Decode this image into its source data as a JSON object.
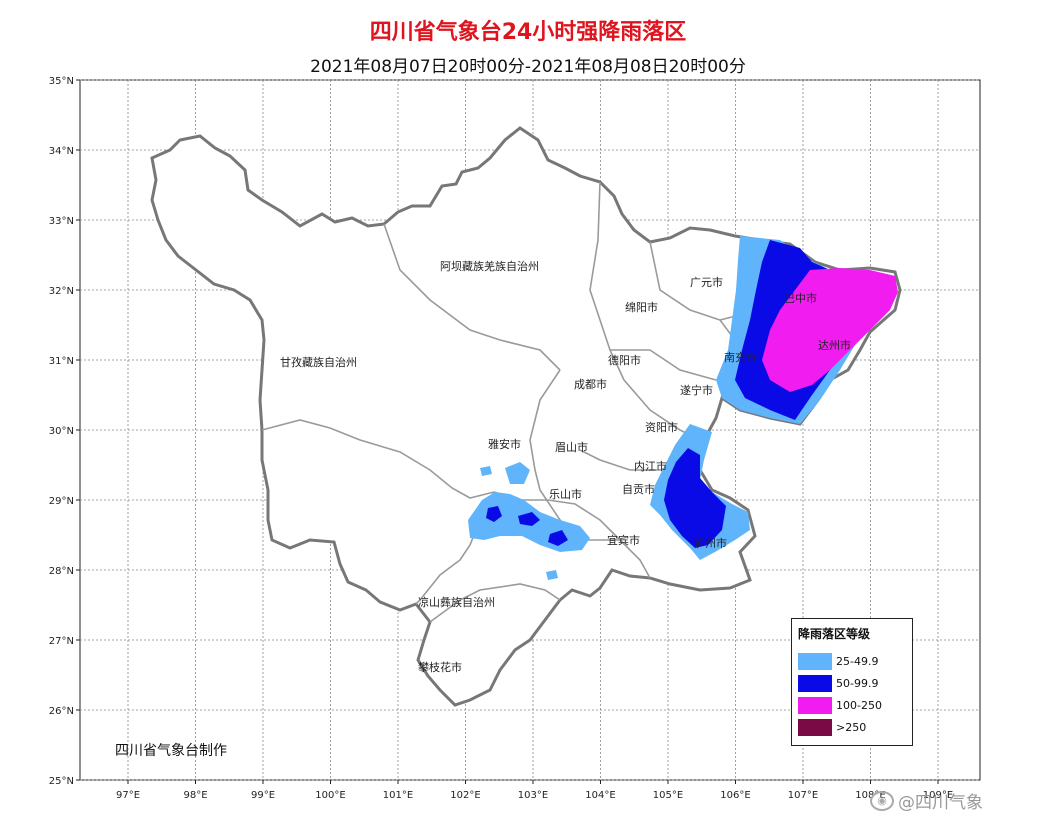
{
  "title": "四川省气象台24小时强降雨落区",
  "subtitle": "2021年08月07日20时00分-2021年08月08日20时00分",
  "axes": {
    "lat_labels": [
      "35°N",
      "34°N",
      "33°N",
      "32°N",
      "31°N",
      "30°N",
      "29°N",
      "28°N",
      "27°N",
      "26°N",
      "25°N"
    ],
    "lon_labels": [
      "97°E",
      "98°E",
      "99°E",
      "100°E",
      "101°E",
      "102°E",
      "103°E",
      "104°E",
      "105°E",
      "106°E",
      "107°E",
      "108°E",
      "109°E"
    ]
  },
  "regions": [
    "阿坝藏族羌族自治州",
    "甘孜藏族自治州",
    "广元市",
    "绵阳市",
    "德阳市",
    "成都市",
    "巴中市",
    "达州市",
    "南充市",
    "遂宁市",
    "资阳市",
    "雅安市",
    "眉山市",
    "乐山市",
    "内江市",
    "自贡市",
    "宜宾市",
    "泸州市",
    "凉山彝族自治州",
    "攀枝花市"
  ],
  "legend": {
    "title": "降雨落区等级",
    "items": [
      {
        "label": "25-49.9",
        "color": "#5fb4fb"
      },
      {
        "label": "50-99.9",
        "color": "#0a0ae6"
      },
      {
        "label": "100-250",
        "color": "#f01cf0"
      },
      {
        "label": ">250",
        "color": "#7a0a46"
      }
    ]
  },
  "credit": "四川省气象台制作",
  "watermark": "@四川气象",
  "colors": {
    "title": "#e0141e",
    "border": "#777777",
    "grid": "#888888"
  }
}
